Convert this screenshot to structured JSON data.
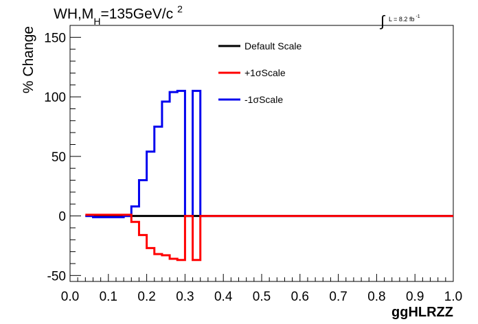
{
  "header": {
    "title_main": "WH,M",
    "title_sub": "H",
    "title_rest": "=135GeV/c",
    "title_sup": "2",
    "lumi_label": "L = 8.2 fb",
    "lumi_sup": "-1"
  },
  "chart_data": {
    "type": "line",
    "title": "WH,M_H=135GeV/c^2",
    "xlabel": "ggHLRZZ",
    "ylabel": "% Change",
    "xlim": [
      0.0,
      1.0
    ],
    "ylim": [
      -55,
      160
    ],
    "x_ticks": [
      "0.0",
      "0.1",
      "0.2",
      "0.3",
      "0.4",
      "0.5",
      "0.6",
      "0.7",
      "0.8",
      "0.9",
      "1.0"
    ],
    "y_ticks": [
      "-50",
      "0",
      "50",
      "100",
      "150"
    ],
    "bin_edges": [
      0.04,
      0.06,
      0.08,
      0.1,
      0.12,
      0.14,
      0.16,
      0.18,
      0.2,
      0.22,
      0.24,
      0.26,
      0.28,
      0.3,
      0.32,
      0.34,
      1.0
    ],
    "legend_position": "top-center",
    "series": [
      {
        "name": "Default Scale",
        "color": "#000000",
        "values": [
          0,
          0,
          0,
          0,
          0,
          0,
          0,
          0,
          0,
          0,
          0,
          0,
          0,
          0,
          0,
          0
        ]
      },
      {
        "name": "+1σScale",
        "color": "#ff0000",
        "values": [
          1,
          1,
          1,
          1,
          1,
          1,
          -5,
          -16,
          -27,
          -32,
          -33,
          -36,
          -37,
          0,
          -37,
          0
        ]
      },
      {
        "name": "-1σScale",
        "color": "#0000ee",
        "values": [
          0,
          -1,
          -1,
          -1,
          -1,
          0,
          8,
          30,
          54,
          75,
          96,
          104,
          105,
          0,
          105,
          0
        ]
      }
    ]
  }
}
